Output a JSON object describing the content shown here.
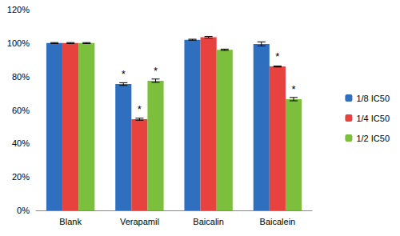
{
  "chart_data": {
    "type": "bar",
    "categories": [
      "Blank",
      "Verapamil",
      "Baicalin",
      "Baicalein"
    ],
    "series": [
      {
        "name": "1/8 IC50",
        "color": "#2e6fc0",
        "values": [
          100,
          75.5,
          102,
          99.5
        ],
        "errors": [
          0.3,
          0.8,
          0.3,
          1.2
        ],
        "annotations": [
          null,
          "*",
          null,
          null
        ]
      },
      {
        "name": "1/4 IC50",
        "color": "#e8423f",
        "values": [
          100,
          54.5,
          103.5,
          86
        ],
        "errors": [
          0.3,
          0.6,
          0.5,
          0.3
        ],
        "annotations": [
          null,
          "*",
          null,
          "*"
        ]
      },
      {
        "name": "1/2 IC50",
        "color": "#7cbf3c",
        "values": [
          100,
          77.5,
          96,
          66.5
        ],
        "errors": [
          0.3,
          1.0,
          0.4,
          1.0
        ],
        "annotations": [
          null,
          "*",
          null,
          "*"
        ]
      }
    ],
    "ylim": [
      0,
      120
    ],
    "yticks": [
      {
        "value": 0,
        "label": "0%"
      },
      {
        "value": 20,
        "label": "20%"
      },
      {
        "value": 40,
        "label": "40%"
      },
      {
        "value": 60,
        "label": "60%"
      },
      {
        "value": 80,
        "label": "80%"
      },
      {
        "value": 100,
        "label": "100%"
      },
      {
        "value": 120,
        "label": "120%"
      }
    ],
    "grid": false,
    "legend": "right"
  }
}
